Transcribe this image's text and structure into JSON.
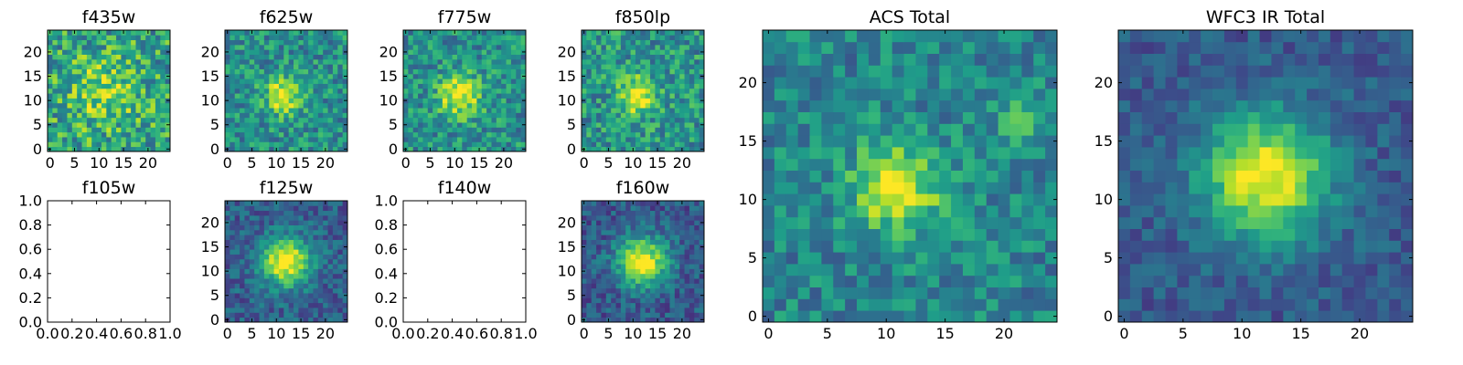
{
  "colors": {
    "colormap": "viridis",
    "stops": [
      "#440154",
      "#482878",
      "#3e4989",
      "#31688e",
      "#26828e",
      "#1f9e89",
      "#35b779",
      "#6ece58",
      "#b5de2b",
      "#fde725"
    ],
    "background": "#ffffff",
    "axes": "#000000"
  },
  "chart_data": [
    {
      "id": "f435w",
      "type": "heatmap",
      "title": "f435w",
      "empty": false,
      "grid_size": 25,
      "xlim": [
        -0.5,
        24.5
      ],
      "ylim": [
        -0.5,
        24.5
      ],
      "xticks": [
        "0",
        "5",
        "10",
        "15",
        "20"
      ],
      "yticks": [
        "0",
        "5",
        "10",
        "15",
        "20"
      ],
      "source": {
        "seed": 11,
        "amp": 0.25,
        "sigma": 5.0,
        "noise": 0.55,
        "base": 0.58,
        "cx": 11,
        "cy": 12
      }
    },
    {
      "id": "f625w",
      "type": "heatmap",
      "title": "f625w",
      "empty": false,
      "grid_size": 25,
      "xlim": [
        -0.5,
        24.5
      ],
      "ylim": [
        -0.5,
        24.5
      ],
      "xticks": [
        "0",
        "5",
        "10",
        "15",
        "20"
      ],
      "yticks": [
        "0",
        "5",
        "10",
        "15",
        "20"
      ],
      "source": {
        "seed": 23,
        "amp": 0.5,
        "sigma": 2.6,
        "noise": 0.42,
        "base": 0.5,
        "cx": 11.5,
        "cy": 11
      }
    },
    {
      "id": "f775w",
      "type": "heatmap",
      "title": "f775w",
      "empty": false,
      "grid_size": 25,
      "xlim": [
        -0.5,
        24.5
      ],
      "ylim": [
        -0.5,
        24.5
      ],
      "xticks": [
        "0",
        "5",
        "10",
        "15",
        "20"
      ],
      "yticks": [
        "0",
        "5",
        "10",
        "15",
        "20"
      ],
      "source": {
        "seed": 37,
        "amp": 0.5,
        "sigma": 3.0,
        "noise": 0.42,
        "base": 0.5,
        "cx": 11,
        "cy": 11
      }
    },
    {
      "id": "f850lp",
      "type": "heatmap",
      "title": "f850lp",
      "empty": false,
      "grid_size": 25,
      "xlim": [
        -0.5,
        24.5
      ],
      "ylim": [
        -0.5,
        24.5
      ],
      "xticks": [
        "0",
        "5",
        "10",
        "15",
        "20"
      ],
      "yticks": [
        "0",
        "5",
        "10",
        "15",
        "20"
      ],
      "source": {
        "seed": 41,
        "amp": 0.5,
        "sigma": 2.6,
        "noise": 0.45,
        "base": 0.52,
        "cx": 11,
        "cy": 11
      }
    },
    {
      "id": "f105w",
      "type": "heatmap",
      "title": "f105w",
      "empty": true,
      "xlim": [
        0,
        1
      ],
      "ylim": [
        0,
        1
      ],
      "xticks": [
        "0.0",
        "0.2",
        "0.4",
        "0.6",
        "0.8",
        "1.0"
      ],
      "yticks": [
        "0.0",
        "0.2",
        "0.4",
        "0.6",
        "0.8",
        "1.0"
      ]
    },
    {
      "id": "f125w",
      "type": "heatmap",
      "title": "f125w",
      "empty": false,
      "grid_size": 25,
      "xlim": [
        -0.5,
        24.5
      ],
      "ylim": [
        -0.5,
        24.5
      ],
      "xticks": [
        "0",
        "5",
        "10",
        "15",
        "20"
      ],
      "yticks": [
        "0",
        "5",
        "10",
        "15",
        "20"
      ],
      "source": {
        "seed": 53,
        "amp": 0.72,
        "sigma": 3.6,
        "noise": 0.3,
        "base": 0.3,
        "cx": 12,
        "cy": 12
      }
    },
    {
      "id": "f140w",
      "type": "heatmap",
      "title": "f140w",
      "empty": true,
      "xlim": [
        0,
        1
      ],
      "ylim": [
        0,
        1
      ],
      "xticks": [
        "0.0",
        "0.2",
        "0.4",
        "0.6",
        "0.8",
        "1.0"
      ],
      "yticks": [
        "0.0",
        "0.2",
        "0.4",
        "0.6",
        "0.8",
        "1.0"
      ]
    },
    {
      "id": "f160w",
      "type": "heatmap",
      "title": "f160w",
      "empty": false,
      "grid_size": 25,
      "xlim": [
        -0.5,
        24.5
      ],
      "ylim": [
        -0.5,
        24.5
      ],
      "xticks": [
        "0",
        "5",
        "10",
        "15",
        "20"
      ],
      "yticks": [
        "0",
        "5",
        "10",
        "15",
        "20"
      ],
      "source": {
        "seed": 67,
        "amp": 0.72,
        "sigma": 3.6,
        "noise": 0.3,
        "base": 0.28,
        "cx": 12,
        "cy": 12
      }
    },
    {
      "id": "acs_total",
      "type": "heatmap",
      "title": "ACS Total",
      "empty": false,
      "grid_size": 25,
      "xlim": [
        -0.5,
        24.5
      ],
      "ylim": [
        -0.5,
        24.5
      ],
      "xticks": [
        "0",
        "5",
        "10",
        "15",
        "20"
      ],
      "yticks": [
        "0",
        "5",
        "10",
        "15",
        "20"
      ],
      "source": {
        "seed": 79,
        "amp": 0.5,
        "sigma": 2.8,
        "noise": 0.35,
        "base": 0.45,
        "cx": 11,
        "cy": 11,
        "amp2": 0.22,
        "sigma2": 1.3,
        "cx2": 21,
        "cy2": 17
      }
    },
    {
      "id": "wfc3_ir_total",
      "type": "heatmap",
      "title": "WFC3 IR Total",
      "empty": false,
      "grid_size": 25,
      "xlim": [
        -0.5,
        24.5
      ],
      "ylim": [
        -0.5,
        24.5
      ],
      "xticks": [
        "0",
        "5",
        "10",
        "15",
        "20"
      ],
      "yticks": [
        "0",
        "5",
        "10",
        "15",
        "20"
      ],
      "source": {
        "seed": 97,
        "amp": 0.72,
        "sigma": 3.8,
        "noise": 0.22,
        "base": 0.28,
        "cx": 12,
        "cy": 12
      }
    }
  ]
}
